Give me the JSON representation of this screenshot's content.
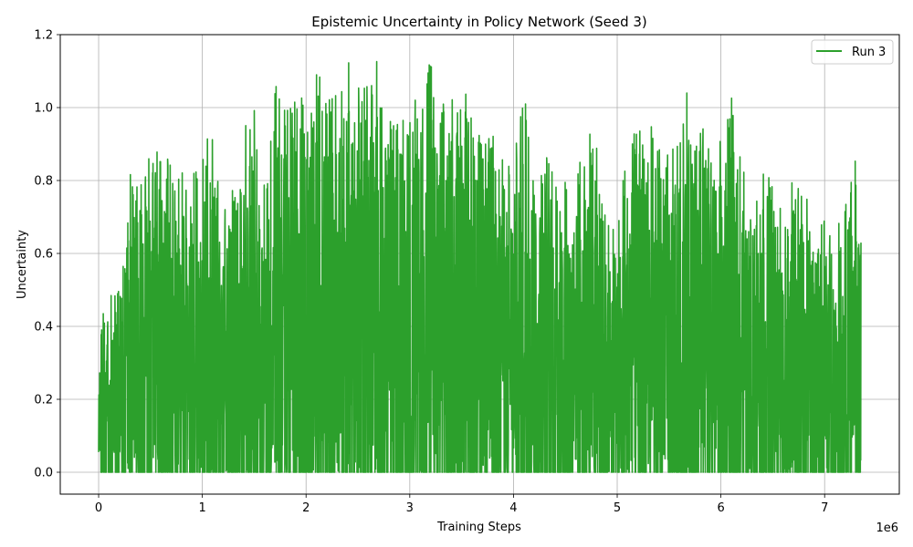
{
  "chart_data": {
    "type": "line",
    "title": "Epistemic Uncertainty in Policy Network (Seed 3)",
    "xlabel": "Training Steps",
    "ylabel": "Uncertainty",
    "x_offset_text": "1e6",
    "xlim": [
      -370000,
      7720000
    ],
    "ylim": [
      -0.06,
      1.2
    ],
    "x_ticks": [
      0,
      1000000,
      2000000,
      3000000,
      4000000,
      5000000,
      6000000,
      7000000
    ],
    "x_tick_labels": [
      "0",
      "1",
      "2",
      "3",
      "4",
      "5",
      "6",
      "7"
    ],
    "y_ticks": [
      0.0,
      0.2,
      0.4,
      0.6,
      0.8,
      1.0,
      1.2
    ],
    "y_tick_labels": [
      "0.0",
      "0.2",
      "0.4",
      "0.6",
      "0.8",
      "1.0",
      "1.2"
    ],
    "grid": true,
    "legend_position": "top-right",
    "series": [
      {
        "name": "Run 3",
        "color": "#2ca02c",
        "x_range": [
          0,
          7350000
        ],
        "envelope": {
          "x": [
            0,
            50000,
            100000,
            200000,
            300000,
            400000,
            500000,
            600000,
            700000,
            800000,
            900000,
            1000000,
            1100000,
            1200000,
            1300000,
            1400000,
            1500000,
            1600000,
            1700000,
            1800000,
            1900000,
            2000000,
            2100000,
            2200000,
            2300000,
            2400000,
            2500000,
            2600000,
            2700000,
            2800000,
            2900000,
            3000000,
            3100000,
            3200000,
            3300000,
            3400000,
            3500000,
            3600000,
            3700000,
            3800000,
            3900000,
            4000000,
            4100000,
            4200000,
            4300000,
            4400000,
            4500000,
            4600000,
            4700000,
            4800000,
            4900000,
            5000000,
            5100000,
            5200000,
            5300000,
            5400000,
            5500000,
            5600000,
            5700000,
            5800000,
            5900000,
            6000000,
            6100000,
            6200000,
            6300000,
            6400000,
            6500000,
            6600000,
            6700000,
            6800000,
            6900000,
            7000000,
            7100000,
            7200000,
            7300000,
            7350000
          ],
          "upper": [
            0.3,
            0.47,
            0.5,
            0.57,
            0.82,
            0.78,
            0.9,
            0.87,
            0.86,
            0.84,
            0.79,
            0.99,
            0.92,
            0.71,
            0.79,
            0.95,
            1.0,
            0.81,
            1.08,
            1.06,
            1.1,
            1.08,
            1.11,
            1.05,
            1.08,
            1.14,
            1.14,
            1.12,
            1.14,
            1.0,
            0.95,
            1.0,
            1.07,
            1.14,
            1.0,
            1.05,
            1.04,
            1.05,
            0.9,
            0.97,
            0.88,
            0.88,
            1.1,
            0.88,
            0.87,
            0.86,
            0.86,
            0.79,
            0.95,
            0.9,
            0.72,
            0.65,
            0.95,
            0.93,
            1.0,
            0.9,
            0.9,
            0.93,
            1.09,
            0.97,
            0.92,
            0.93,
            1.03,
            0.87,
            0.69,
            0.86,
            0.78,
            0.71,
            0.81,
            0.77,
            0.71,
            0.72,
            0.66,
            0.77,
            0.87,
            0.67
          ],
          "lower_floor": 0.0
        }
      }
    ]
  }
}
